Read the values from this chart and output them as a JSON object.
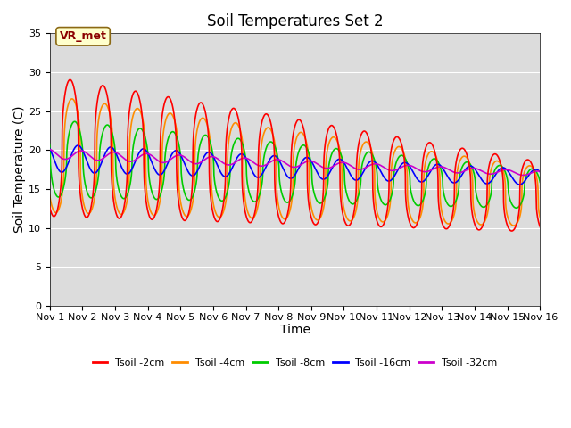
{
  "title": "Soil Temperatures Set 2",
  "xlabel": "Time",
  "ylabel": "Soil Temperature (C)",
  "xlim": [
    0,
    15
  ],
  "ylim": [
    0,
    35
  ],
  "yticks": [
    0,
    5,
    10,
    15,
    20,
    25,
    30,
    35
  ],
  "xtick_labels": [
    "Nov 1",
    "Nov 2",
    "Nov 3",
    "Nov 4",
    "Nov 5",
    "Nov 6",
    "Nov 7",
    "Nov 8",
    "Nov 9",
    "Nov 10",
    "Nov 11",
    "Nov 12",
    "Nov 13",
    "Nov 14",
    "Nov 15",
    "Nov 16"
  ],
  "annotation_text": "VR_met",
  "colors": {
    "2cm": "#FF0000",
    "4cm": "#FF8C00",
    "8cm": "#00CC00",
    "16cm": "#0000FF",
    "32cm": "#CC00CC"
  },
  "legend_labels": [
    "Tsoil -2cm",
    "Tsoil -4cm",
    "Tsoil -8cm",
    "Tsoil -16cm",
    "Tsoil -32cm"
  ],
  "plot_bg": "#DCDCDC",
  "fig_bg": "#FFFFFF",
  "title_fontsize": 12,
  "axis_label_fontsize": 10,
  "tick_fontsize": 8
}
